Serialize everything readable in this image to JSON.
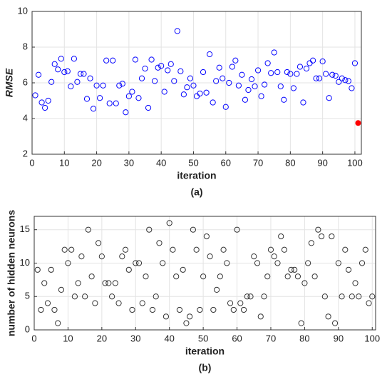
{
  "chart_data": [
    {
      "type": "scatter",
      "ylabel": "RMSE",
      "xlabel": "iteration",
      "caption": "(a)",
      "xlim": [
        0,
        102
      ],
      "ylim": [
        2,
        10
      ],
      "xticks": [
        0,
        10,
        20,
        30,
        40,
        50,
        60,
        70,
        80,
        90,
        100
      ],
      "yticks": [
        2,
        4,
        6,
        8,
        10
      ],
      "grid": true,
      "series": [
        {
          "color": "#0000ff",
          "filled": false,
          "x": [
            1,
            2,
            3,
            4,
            5,
            6,
            7,
            8,
            9,
            10,
            11,
            12,
            13,
            14,
            15,
            16,
            17,
            18,
            19,
            20,
            21,
            22,
            23,
            24,
            25,
            26,
            27,
            28,
            29,
            30,
            31,
            32,
            33,
            34,
            35,
            36,
            37,
            38,
            39,
            40,
            41,
            42,
            43,
            44,
            45,
            46,
            47,
            48,
            49,
            50,
            51,
            52,
            53,
            54,
            55,
            56,
            57,
            58,
            59,
            60,
            61,
            62,
            63,
            64,
            65,
            66,
            67,
            68,
            69,
            70,
            71,
            72,
            73,
            74,
            75,
            76,
            77,
            78,
            79,
            80,
            81,
            82,
            83,
            84,
            85,
            86,
            87,
            88,
            89,
            90,
            91,
            92,
            93,
            94,
            95,
            96,
            97,
            98,
            99,
            100
          ],
          "values": [
            5.3,
            6.45,
            4.9,
            4.6,
            5.0,
            6.05,
            7.05,
            6.75,
            7.35,
            6.6,
            6.65,
            5.8,
            7.35,
            6.05,
            6.5,
            6.5,
            5.1,
            6.25,
            4.55,
            5.85,
            5.15,
            5.85,
            7.25,
            4.85,
            7.25,
            4.85,
            5.85,
            5.95,
            4.35,
            5.25,
            5.5,
            7.3,
            5.15,
            6.25,
            6.8,
            4.6,
            7.3,
            6.1,
            6.85,
            6.95,
            5.5,
            6.7,
            7.05,
            6.1,
            8.9,
            6.65,
            5.35,
            5.75,
            6.25,
            5.85,
            5.25,
            5.4,
            6.6,
            5.45,
            7.6,
            4.9,
            6.1,
            6.85,
            6.25,
            4.65,
            6.0,
            6.9,
            7.25,
            5.85,
            6.45,
            5.05,
            5.6,
            6.2,
            5.8,
            6.7,
            5.25,
            5.9,
            7.1,
            6.55,
            7.7,
            6.6,
            5.8,
            5.05,
            6.6,
            6.5,
            5.7,
            6.5,
            6.9,
            4.9,
            6.8,
            7.1,
            7.25,
            6.25,
            6.25,
            7.2,
            6.5,
            5.15,
            6.45,
            6.4,
            6.05,
            6.25,
            6.15,
            6.1,
            5.7,
            7.1
          ]
        },
        {
          "color": "#ff0000",
          "filled": true,
          "x": [
            101
          ],
          "values": [
            3.75
          ]
        }
      ]
    },
    {
      "type": "scatter",
      "ylabel": "number of hidden neurons",
      "xlabel": "iteration",
      "caption": "(b)",
      "xlim": [
        0,
        101
      ],
      "ylim": [
        0,
        17
      ],
      "xticks": [
        0,
        10,
        20,
        30,
        40,
        50,
        60,
        70,
        80,
        90,
        100
      ],
      "yticks": [
        0,
        5,
        10,
        15
      ],
      "grid": true,
      "series": [
        {
          "color": "#333333",
          "filled": false,
          "x": [
            1,
            2,
            3,
            4,
            5,
            6,
            7,
            8,
            9,
            10,
            11,
            12,
            13,
            14,
            15,
            16,
            17,
            18,
            19,
            20,
            21,
            22,
            23,
            24,
            25,
            26,
            27,
            28,
            29,
            30,
            31,
            32,
            33,
            34,
            35,
            36,
            37,
            38,
            39,
            40,
            41,
            42,
            43,
            44,
            45,
            46,
            47,
            48,
            49,
            50,
            51,
            52,
            53,
            54,
            55,
            56,
            57,
            58,
            59,
            60,
            61,
            62,
            63,
            64,
            65,
            66,
            67,
            68,
            69,
            70,
            71,
            72,
            73,
            74,
            75,
            76,
            77,
            78,
            79,
            80,
            81,
            82,
            83,
            84,
            85,
            86,
            87,
            88,
            89,
            90,
            91,
            92,
            93,
            94,
            95,
            96,
            97,
            98,
            99,
            100
          ],
          "values": [
            9,
            3,
            7,
            4,
            9,
            3,
            1,
            6,
            12,
            10,
            12,
            5,
            7,
            11,
            5,
            15,
            8,
            4,
            13,
            11,
            7,
            7,
            5,
            7,
            4,
            11,
            12,
            9,
            3,
            10,
            10,
            4,
            8,
            15,
            3,
            5,
            13,
            10,
            2,
            16,
            12,
            8,
            3,
            9,
            1,
            2,
            15,
            12,
            3,
            8,
            14,
            11,
            3,
            6,
            8,
            12,
            10,
            4,
            3,
            15,
            4,
            3,
            5,
            5,
            11,
            10,
            2,
            5,
            8,
            12,
            11,
            10,
            14,
            12,
            8,
            9,
            9,
            8,
            1,
            7,
            10,
            13,
            8,
            15,
            14,
            5,
            2,
            14,
            1,
            10,
            5,
            12,
            9,
            5,
            7,
            5,
            10,
            12,
            4,
            5
          ]
        }
      ]
    }
  ]
}
